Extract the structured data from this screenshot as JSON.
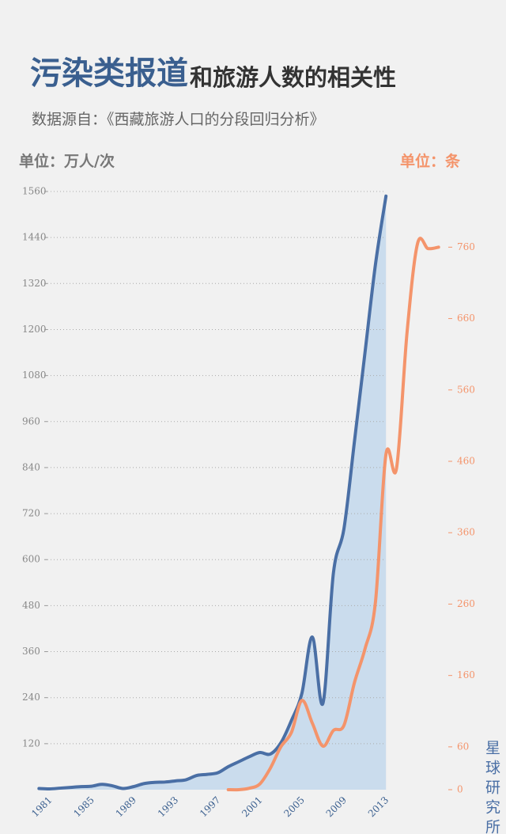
{
  "chart_data": {
    "type": "line",
    "title_parts": [
      "污染类报道",
      "和旅游人数的相关性"
    ],
    "subtitle": "数据源自：《西藏旅游人口的分段回归分析》",
    "y_label": "单位：万人/次",
    "y2_label": "单位：条",
    "annotation": "星球研究所",
    "x": [
      1981,
      1982,
      1983,
      1984,
      1985,
      1986,
      1987,
      1988,
      1989,
      1990,
      1991,
      1992,
      1993,
      1994,
      1995,
      1996,
      1997,
      1998,
      1999,
      2000,
      2001,
      2002,
      2003,
      2004,
      2005,
      2006,
      2007,
      2008,
      2009,
      2010,
      2011,
      2012,
      2013,
      2014,
      2015,
      2016,
      2017,
      2018,
      2019
    ],
    "xlim": [
      1980,
      2020
    ],
    "xticks": [
      1981,
      1985,
      1989,
      1993,
      1997,
      2001,
      2005,
      2009,
      2013
    ],
    "ylim": [
      0,
      1560
    ],
    "yticks": [
      120,
      240,
      360,
      480,
      600,
      720,
      840,
      960,
      1080,
      1200,
      1320,
      1440,
      1560
    ],
    "y2lim": [
      0,
      838
    ],
    "y2ticks": [
      0,
      60,
      160,
      260,
      360,
      460,
      560,
      660,
      760
    ],
    "grid": true,
    "series": [
      {
        "name": "旅游人数",
        "color": "#4a6fa5",
        "fill": "#cadced",
        "values": [
          3,
          2,
          4,
          6,
          8,
          9,
          14,
          10,
          3,
          8,
          16,
          19,
          20,
          23,
          26,
          37,
          40,
          44,
          60,
          73,
          86,
          97,
          93,
          122,
          180,
          251,
          398,
          225,
          565,
          680,
          908,
          1139,
          1370,
          1548,
          null,
          null,
          null,
          null,
          null
        ]
      },
      {
        "name": "污染类报道",
        "color": "#f4946b",
        "axis": "y2",
        "values": [
          null,
          null,
          null,
          null,
          null,
          null,
          null,
          null,
          null,
          null,
          null,
          null,
          null,
          null,
          null,
          null,
          null,
          null,
          0,
          0,
          2,
          8,
          30,
          60,
          80,
          125,
          93,
          61,
          83,
          90,
          150,
          197,
          263,
          470,
          450,
          640,
          765,
          758,
          760
        ]
      }
    ]
  }
}
